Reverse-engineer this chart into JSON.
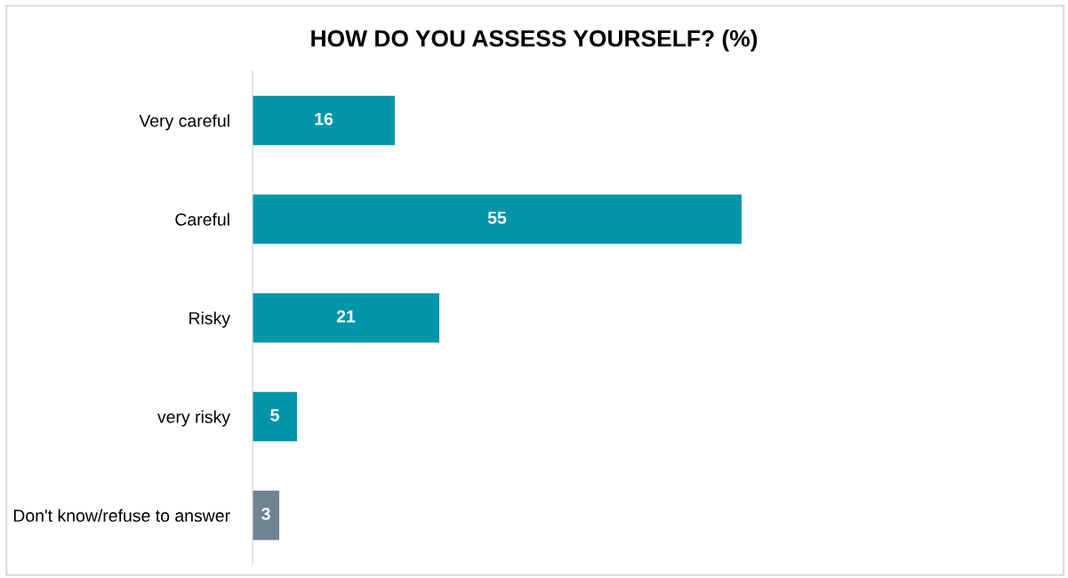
{
  "chart_data": {
    "type": "bar",
    "orientation": "horizontal",
    "title": "HOW DO YOU ASSESS YOURSELF? (%)",
    "categories": [
      "Very careful",
      "Careful",
      "Risky",
      "very risky",
      "Don't know/refuse to answer"
    ],
    "values": [
      16,
      55,
      21,
      5,
      3
    ],
    "colors": [
      "#0095a8",
      "#0095a8",
      "#0095a8",
      "#0095a8",
      "#6e8591"
    ],
    "data_labels": true,
    "grid": false,
    "legend": false
  }
}
